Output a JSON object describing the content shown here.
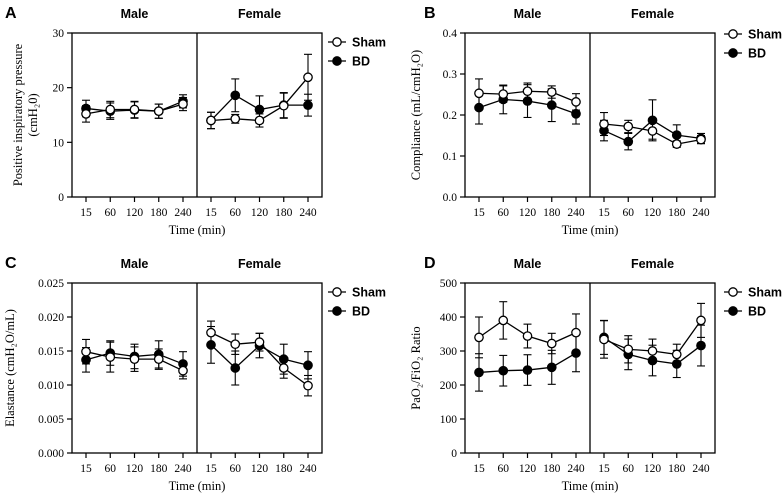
{
  "figure": {
    "x_unit_label": "Time (min)"
  },
  "chart_data": [
    {
      "panel": "A",
      "type": "line",
      "groups": [
        "Male",
        "Female"
      ],
      "categories": [
        "15",
        "60",
        "120",
        "180",
        "240"
      ],
      "ylabel": "Positive inspiratory pressure",
      "ylabel_unit": "(cmH₂0)",
      "xlabel": "Time (min)",
      "ylim": [
        0,
        30
      ],
      "yticks": [
        "0",
        "10",
        "20",
        "30"
      ],
      "series": [
        {
          "name": "Sham",
          "marker": "open",
          "male": [
            15.2,
            16.0,
            16.0,
            15.7,
            17.0
          ],
          "male_err": [
            1.5,
            1.5,
            1.5,
            1.3,
            1.2
          ],
          "female": [
            14.0,
            14.3,
            14.0,
            16.7,
            21.9
          ],
          "female_err": [
            1.5,
            0.8,
            1.2,
            2.3,
            4.2
          ]
        },
        {
          "name": "BD",
          "marker": "filled",
          "male": [
            16.2,
            15.7,
            15.9,
            15.7,
            17.5
          ],
          "male_err": [
            1.5,
            1.5,
            1.5,
            1.3,
            1.2
          ],
          "female": [
            14.0,
            18.6,
            16.0,
            16.8,
            16.8
          ],
          "female_err": [
            1.5,
            3.0,
            2.5,
            2.3,
            2.0
          ]
        }
      ]
    },
    {
      "panel": "B",
      "type": "line",
      "groups": [
        "Male",
        "Female"
      ],
      "categories": [
        "15",
        "60",
        "120",
        "180",
        "240"
      ],
      "ylabel": "Compliance (mL/cmH₂O)",
      "ylabel_unit": "",
      "xlabel": "Time (min)",
      "ylim": [
        0,
        0.4
      ],
      "yticks": [
        "0.0",
        "0.1",
        "0.2",
        "0.3",
        "0.4"
      ],
      "series": [
        {
          "name": "Sham",
          "marker": "open",
          "male": [
            0.253,
            0.251,
            0.258,
            0.256,
            0.232
          ],
          "male_err": [
            0.035,
            0.02,
            0.02,
            0.015,
            0.02
          ],
          "female": [
            0.178,
            0.172,
            0.161,
            0.129,
            0.14
          ],
          "female_err": [
            0.028,
            0.015,
            0.02,
            0.008,
            0.01
          ]
        },
        {
          "name": "BD",
          "marker": "filled",
          "male": [
            0.218,
            0.238,
            0.234,
            0.224,
            0.203
          ],
          "male_err": [
            0.04,
            0.035,
            0.04,
            0.04,
            0.025
          ],
          "female": [
            0.162,
            0.135,
            0.187,
            0.151,
            0.143
          ],
          "female_err": [
            0.025,
            0.02,
            0.05,
            0.025,
            0.012
          ]
        }
      ]
    },
    {
      "panel": "C",
      "type": "line",
      "groups": [
        "Male",
        "Female"
      ],
      "categories": [
        "15",
        "60",
        "120",
        "180",
        "240"
      ],
      "ylabel": "Elastance (cmH₂O/mL)",
      "ylabel_unit": "",
      "xlabel": "Time (min)",
      "ylim": [
        0,
        0.025
      ],
      "yticks": [
        "0.000",
        "0.005",
        "0.010",
        "0.015",
        "0.020",
        "0.025"
      ],
      "series": [
        {
          "name": "Sham",
          "marker": "open",
          "male": [
            0.0149,
            0.0141,
            0.0138,
            0.0138,
            0.0121
          ],
          "male_err": [
            0.0018,
            0.0022,
            0.0018,
            0.0015,
            0.0012
          ],
          "female": [
            0.0177,
            0.016,
            0.0163,
            0.0125,
            0.0099
          ],
          "female_err": [
            0.0017,
            0.0015,
            0.0013,
            0.0015,
            0.0015
          ]
        },
        {
          "name": "BD",
          "marker": "filled",
          "male": [
            0.0137,
            0.0147,
            0.0142,
            0.0145,
            0.0131
          ],
          "male_err": [
            0.0018,
            0.0018,
            0.0018,
            0.002,
            0.0018
          ],
          "female": [
            0.0159,
            0.0125,
            0.0158,
            0.0138,
            0.0129
          ],
          "female_err": [
            0.0027,
            0.0025,
            0.0018,
            0.0022,
            0.002
          ]
        }
      ]
    },
    {
      "panel": "D",
      "type": "line",
      "groups": [
        "Male",
        "Female"
      ],
      "categories": [
        "15",
        "60",
        "120",
        "180",
        "240"
      ],
      "ylabel": "PaO₂/FiO₂ Ratio",
      "ylabel_unit": "",
      "xlabel": "Time (min)",
      "ylim": [
        0,
        500
      ],
      "yticks": [
        "0",
        "100",
        "200",
        "300",
        "400",
        "500"
      ],
      "series": [
        {
          "name": "Sham",
          "marker": "open",
          "male": [
            340,
            390,
            344,
            322,
            354
          ],
          "male_err": [
            60,
            55,
            35,
            30,
            55
          ],
          "female": [
            334,
            305,
            300,
            290,
            390
          ],
          "female_err": [
            55,
            40,
            35,
            30,
            50
          ]
        },
        {
          "name": "BD",
          "marker": "filled",
          "male": [
            237,
            242,
            244,
            252,
            294
          ],
          "male_err": [
            55,
            45,
            45,
            50,
            55
          ],
          "female": [
            340,
            290,
            272,
            262,
            316
          ],
          "female_err": [
            50,
            45,
            45,
            40,
            60
          ]
        }
      ]
    }
  ]
}
